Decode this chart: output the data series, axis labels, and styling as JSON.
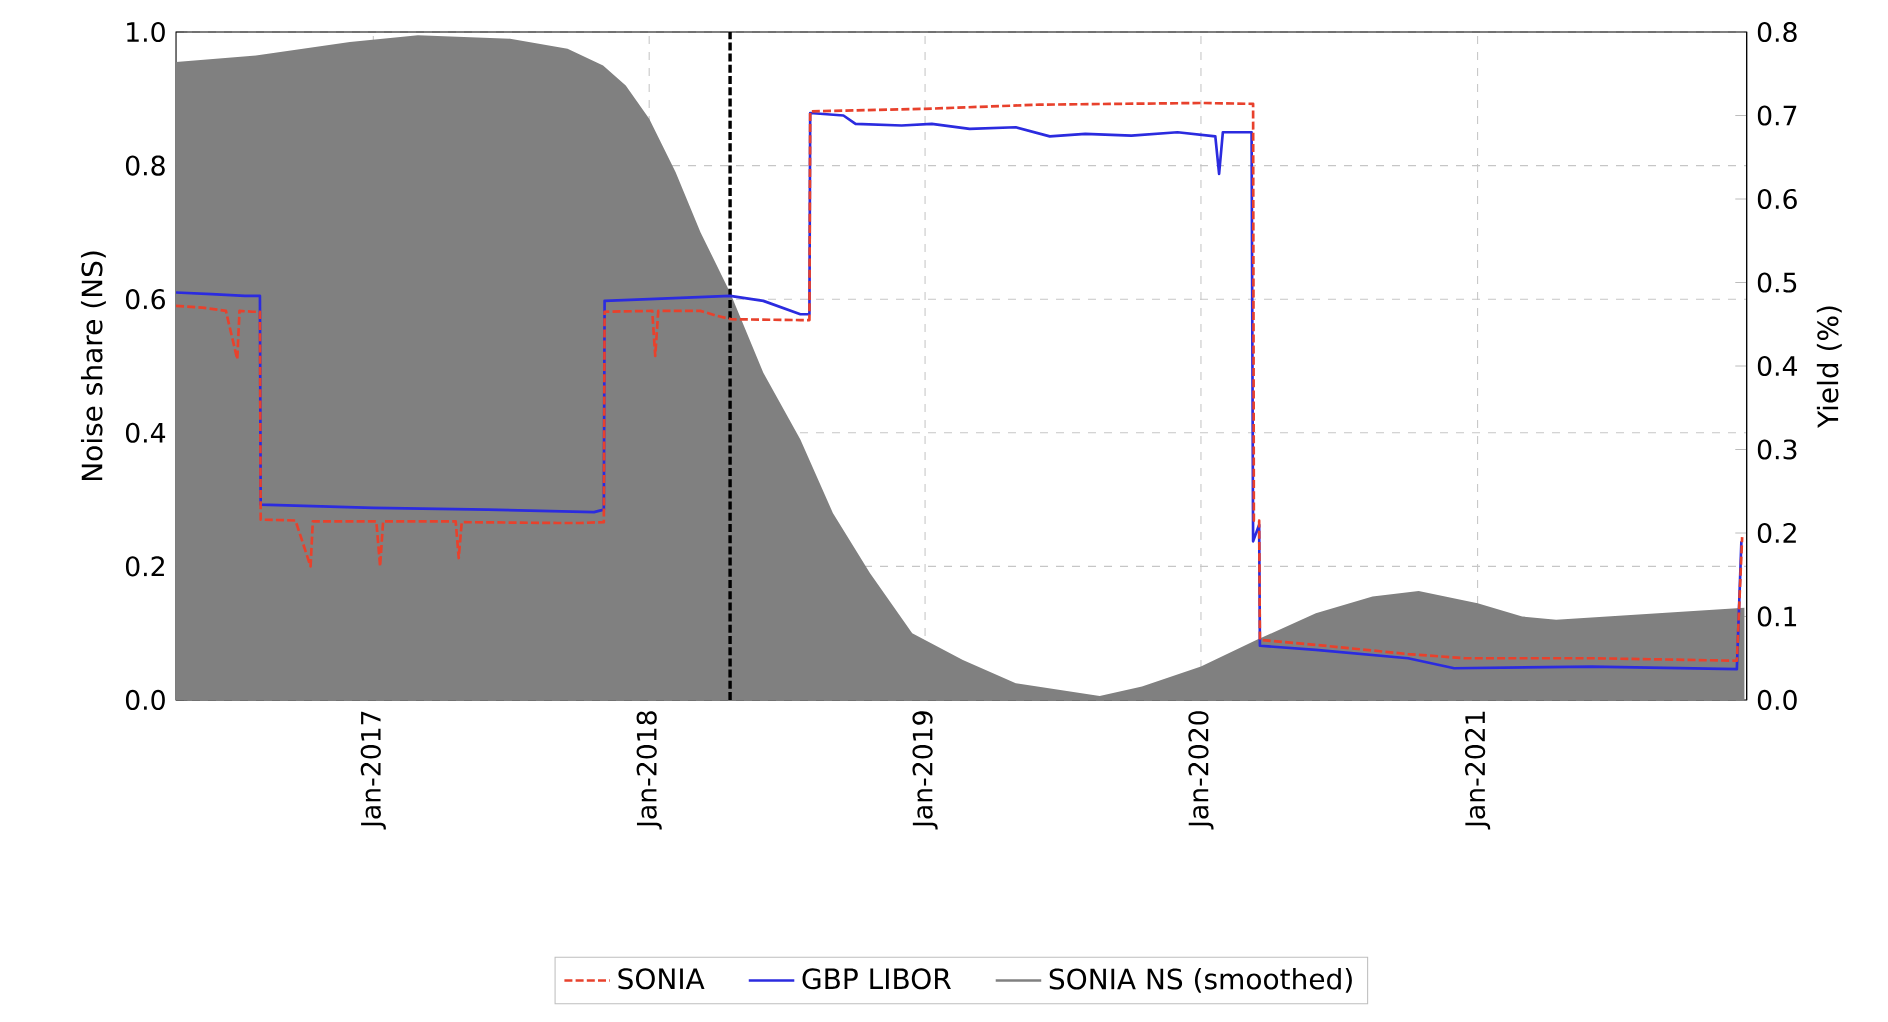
{
  "chart_data": {
    "type": "line",
    "xlim": [
      "2016-04-15",
      "2021-12-23"
    ],
    "xticks": [
      {
        "value": "2017-01-01",
        "label": "Jan-2017"
      },
      {
        "value": "2018-01-01",
        "label": "Jan-2018"
      },
      {
        "value": "2019-01-01",
        "label": "Jan-2019"
      },
      {
        "value": "2020-01-01",
        "label": "Jan-2020"
      },
      {
        "value": "2021-01-01",
        "label": "Jan-2021"
      }
    ],
    "ylim": [
      0,
      1.0
    ],
    "yticks": [
      {
        "value": 0,
        "label": "0.0"
      },
      {
        "value": 0.2,
        "label": "0.2"
      },
      {
        "value": 0.4,
        "label": "0.4"
      },
      {
        "value": 0.6,
        "label": "0.6"
      },
      {
        "value": 0.8,
        "label": "0.8"
      },
      {
        "value": 1.0,
        "label": "1.0"
      }
    ],
    "y2lim": [
      0,
      0.8
    ],
    "y2ticks": [
      {
        "value": 0,
        "label": "0.0"
      },
      {
        "value": 0.1,
        "label": "0.1"
      },
      {
        "value": 0.2,
        "label": "0.2"
      },
      {
        "value": 0.3,
        "label": "0.3"
      },
      {
        "value": 0.4,
        "label": "0.4"
      },
      {
        "value": 0.5,
        "label": "0.5"
      },
      {
        "value": 0.6,
        "label": "0.6"
      },
      {
        "value": 0.7,
        "label": "0.7"
      },
      {
        "value": 0.8,
        "label": "0.8"
      }
    ],
    "ylabel": "Noise share (NS)",
    "y2label": "Yield (%)",
    "grid": true,
    "legend": "bottom",
    "ref_lines": [
      {
        "axis": "x",
        "value": "2018-04-18",
        "color": "#000000",
        "line_style": "dashed"
      }
    ],
    "series": [
      {
        "name": "SONIA",
        "axis": "y2",
        "color": "#e8412c",
        "line_style": "dashed",
        "x": [
          "2016-04-15",
          "2016-05-20",
          "2016-06-20",
          "2016-07-05",
          "2016-07-08",
          "2016-07-25",
          "2016-08-04",
          "2016-08-05",
          "2016-09-20",
          "2016-10-10",
          "2016-10-13",
          "2017-01-05",
          "2017-01-10",
          "2017-01-14",
          "2017-04-20",
          "2017-04-24",
          "2017-04-28",
          "2017-09-01",
          "2017-10-01",
          "2017-11-02",
          "2017-11-03",
          "2018-01-05",
          "2018-01-09",
          "2018-01-13",
          "2018-03-10",
          "2018-04-01",
          "2018-04-20",
          "2018-07-20",
          "2018-08-01",
          "2018-08-02",
          "2019-01-01",
          "2019-06-01",
          "2020-01-01",
          "2020-03-10",
          "2020-03-11",
          "2020-03-18",
          "2020-03-19",
          "2020-06-01",
          "2020-10-01",
          "2020-12-15",
          "2021-06-01",
          "2021-12-10",
          "2021-12-17"
        ],
        "values": [
          0.472,
          0.47,
          0.466,
          0.408,
          0.466,
          0.465,
          0.465,
          0.216,
          0.215,
          0.16,
          0.214,
          0.214,
          0.16,
          0.214,
          0.214,
          0.17,
          0.213,
          0.212,
          0.212,
          0.213,
          0.465,
          0.466,
          0.412,
          0.466,
          0.466,
          0.46,
          0.456,
          0.455,
          0.455,
          0.705,
          0.708,
          0.713,
          0.715,
          0.714,
          0.215,
          0.215,
          0.072,
          0.066,
          0.055,
          0.05,
          0.05,
          0.047,
          0.195
        ]
      },
      {
        "name": "GBP LIBOR",
        "axis": "y2",
        "color": "#2b2bdf",
        "line_style": "solid",
        "x": [
          "2016-04-15",
          "2016-06-01",
          "2016-07-15",
          "2016-08-04",
          "2016-08-05",
          "2017-01-01",
          "2017-06-01",
          "2017-10-20",
          "2017-11-02",
          "2017-11-03",
          "2018-01-01",
          "2018-04-18",
          "2018-06-01",
          "2018-07-20",
          "2018-08-01",
          "2018-08-02",
          "2018-09-15",
          "2018-10-01",
          "2018-12-01",
          "2019-01-10",
          "2019-03-01",
          "2019-05-01",
          "2019-06-15",
          "2019-08-01",
          "2019-10-01",
          "2019-12-01",
          "2020-01-20",
          "2020-01-25",
          "2020-01-30",
          "2020-03-08",
          "2020-03-10",
          "2020-03-18",
          "2020-03-19",
          "2020-06-01",
          "2020-10-01",
          "2020-12-01",
          "2021-06-01",
          "2021-12-10",
          "2021-12-16"
        ],
        "values": [
          0.488,
          0.486,
          0.484,
          0.484,
          0.234,
          0.23,
          0.228,
          0.225,
          0.228,
          0.478,
          0.48,
          0.484,
          0.478,
          0.462,
          0.462,
          0.703,
          0.7,
          0.69,
          0.688,
          0.69,
          0.684,
          0.686,
          0.675,
          0.678,
          0.676,
          0.68,
          0.675,
          0.63,
          0.68,
          0.68,
          0.19,
          0.21,
          0.065,
          0.06,
          0.05,
          0.038,
          0.04,
          0.037,
          0.19
        ]
      },
      {
        "name": "SONIA NS (smoothed)",
        "type": "area",
        "axis": "y",
        "color": "#808080",
        "x": [
          "2016-04-15",
          "2016-08-01",
          "2016-12-01",
          "2017-03-01",
          "2017-07-01",
          "2017-09-15",
          "2017-11-01",
          "2017-12-01",
          "2018-01-01",
          "2018-02-05",
          "2018-03-10",
          "2018-04-18",
          "2018-06-01",
          "2018-07-20",
          "2018-09-01",
          "2018-10-20",
          "2018-12-15",
          "2019-02-20",
          "2019-05-01",
          "2019-08-20",
          "2019-10-15",
          "2020-01-01",
          "2020-03-15",
          "2020-06-01",
          "2020-08-15",
          "2020-10-15",
          "2021-01-01",
          "2021-03-01",
          "2021-04-15",
          "2021-12-20"
        ],
        "values": [
          0.955,
          0.965,
          0.985,
          0.995,
          0.99,
          0.975,
          0.95,
          0.92,
          0.87,
          0.79,
          0.7,
          0.61,
          0.49,
          0.39,
          0.28,
          0.19,
          0.1,
          0.06,
          0.025,
          0.006,
          0.02,
          0.05,
          0.09,
          0.13,
          0.155,
          0.163,
          0.145,
          0.125,
          0.12,
          0.138
        ]
      }
    ]
  }
}
